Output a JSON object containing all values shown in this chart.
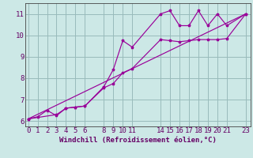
{
  "xlabel": "Windchill (Refroidissement éolien,°C)",
  "bg_color": "#cce8e6",
  "line_color": "#990099",
  "grid_color": "#99bbbb",
  "axis_color": "#660066",
  "spine_color": "#444444",
  "line1_x": [
    0,
    1,
    2,
    3,
    4,
    5,
    6,
    8,
    9,
    10,
    11,
    14,
    15,
    16,
    17,
    18,
    19,
    20,
    21,
    23
  ],
  "line1_y": [
    6.1,
    6.2,
    6.5,
    6.25,
    6.6,
    6.65,
    6.7,
    7.6,
    8.4,
    9.75,
    9.45,
    11.0,
    11.15,
    10.45,
    10.45,
    11.15,
    10.45,
    11.0,
    10.45,
    11.0
  ],
  "line2_x": [
    0,
    3,
    4,
    5,
    6,
    8,
    9,
    10,
    11,
    14,
    15,
    16,
    17,
    18,
    19,
    20,
    21,
    23
  ],
  "line2_y": [
    6.1,
    6.3,
    6.6,
    6.65,
    6.7,
    7.55,
    7.75,
    8.25,
    8.45,
    9.8,
    9.75,
    9.7,
    9.75,
    9.8,
    9.8,
    9.8,
    9.85,
    11.0
  ],
  "line3_x": [
    0,
    23
  ],
  "line3_y": [
    6.1,
    11.0
  ],
  "xlim": [
    -0.3,
    23.5
  ],
  "ylim": [
    5.75,
    11.5
  ],
  "xticks": [
    0,
    1,
    2,
    3,
    4,
    5,
    6,
    8,
    9,
    10,
    11,
    14,
    15,
    16,
    17,
    18,
    19,
    20,
    21,
    23
  ],
  "yticks": [
    6,
    7,
    8,
    9,
    10,
    11
  ],
  "tick_fontsize": 6.5,
  "label_fontsize": 6.5
}
